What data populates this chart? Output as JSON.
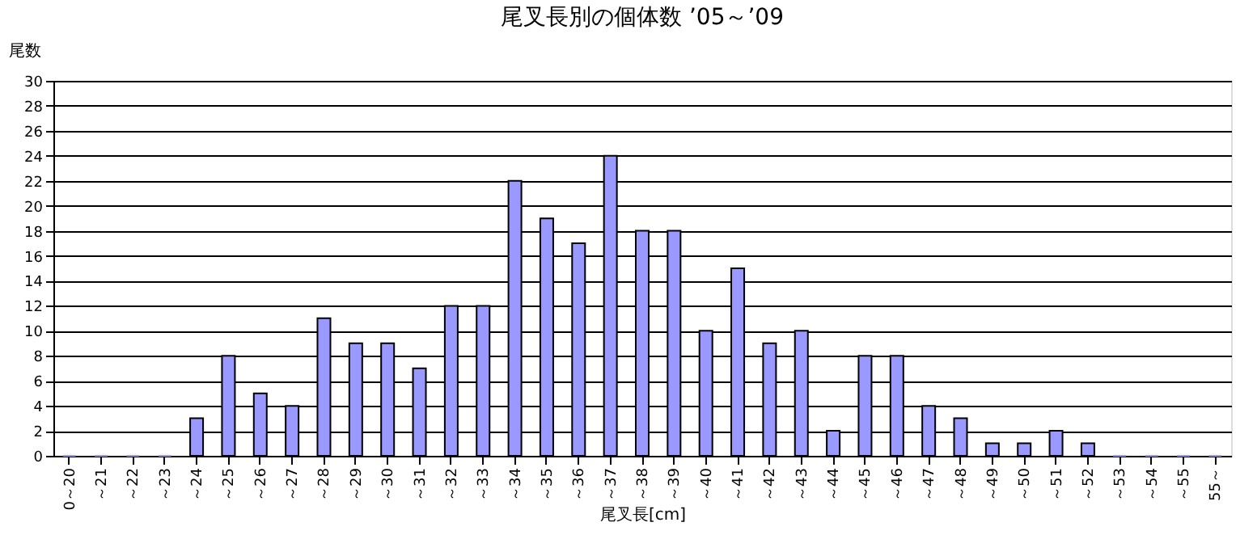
{
  "chart_data": {
    "type": "bar",
    "title": "尾叉長別の個体数 ’05～’09",
    "xlabel": "尾叉長[cm]",
    "ylabel": "尾数",
    "categories": [
      "0～20",
      "～21",
      "～22",
      "～23",
      "～24",
      "～25",
      "～26",
      "～27",
      "～28",
      "～29",
      "～30",
      "～31",
      "～32",
      "～33",
      "～34",
      "～35",
      "～36",
      "～37",
      "～38",
      "～39",
      "～40",
      "～41",
      "～42",
      "～43",
      "～44",
      "～45",
      "～46",
      "～47",
      "～48",
      "～49",
      "～50",
      "～51",
      "～52",
      "～53",
      "～54",
      "～55",
      "55～"
    ],
    "values": [
      0,
      0,
      0,
      0,
      3,
      8,
      5,
      4,
      11,
      9,
      9,
      7,
      12,
      12,
      22,
      19,
      17,
      24,
      18,
      18,
      10,
      15,
      9,
      10,
      2,
      8,
      8,
      4,
      3,
      1,
      1,
      2,
      1,
      0,
      0,
      0,
      0
    ],
    "color": "#9999ff",
    "ylim": [
      0,
      30
    ],
    "yticks": [
      0,
      2,
      4,
      6,
      8,
      10,
      12,
      14,
      16,
      18,
      20,
      22,
      24,
      26,
      28,
      30
    ],
    "grid": "y"
  }
}
